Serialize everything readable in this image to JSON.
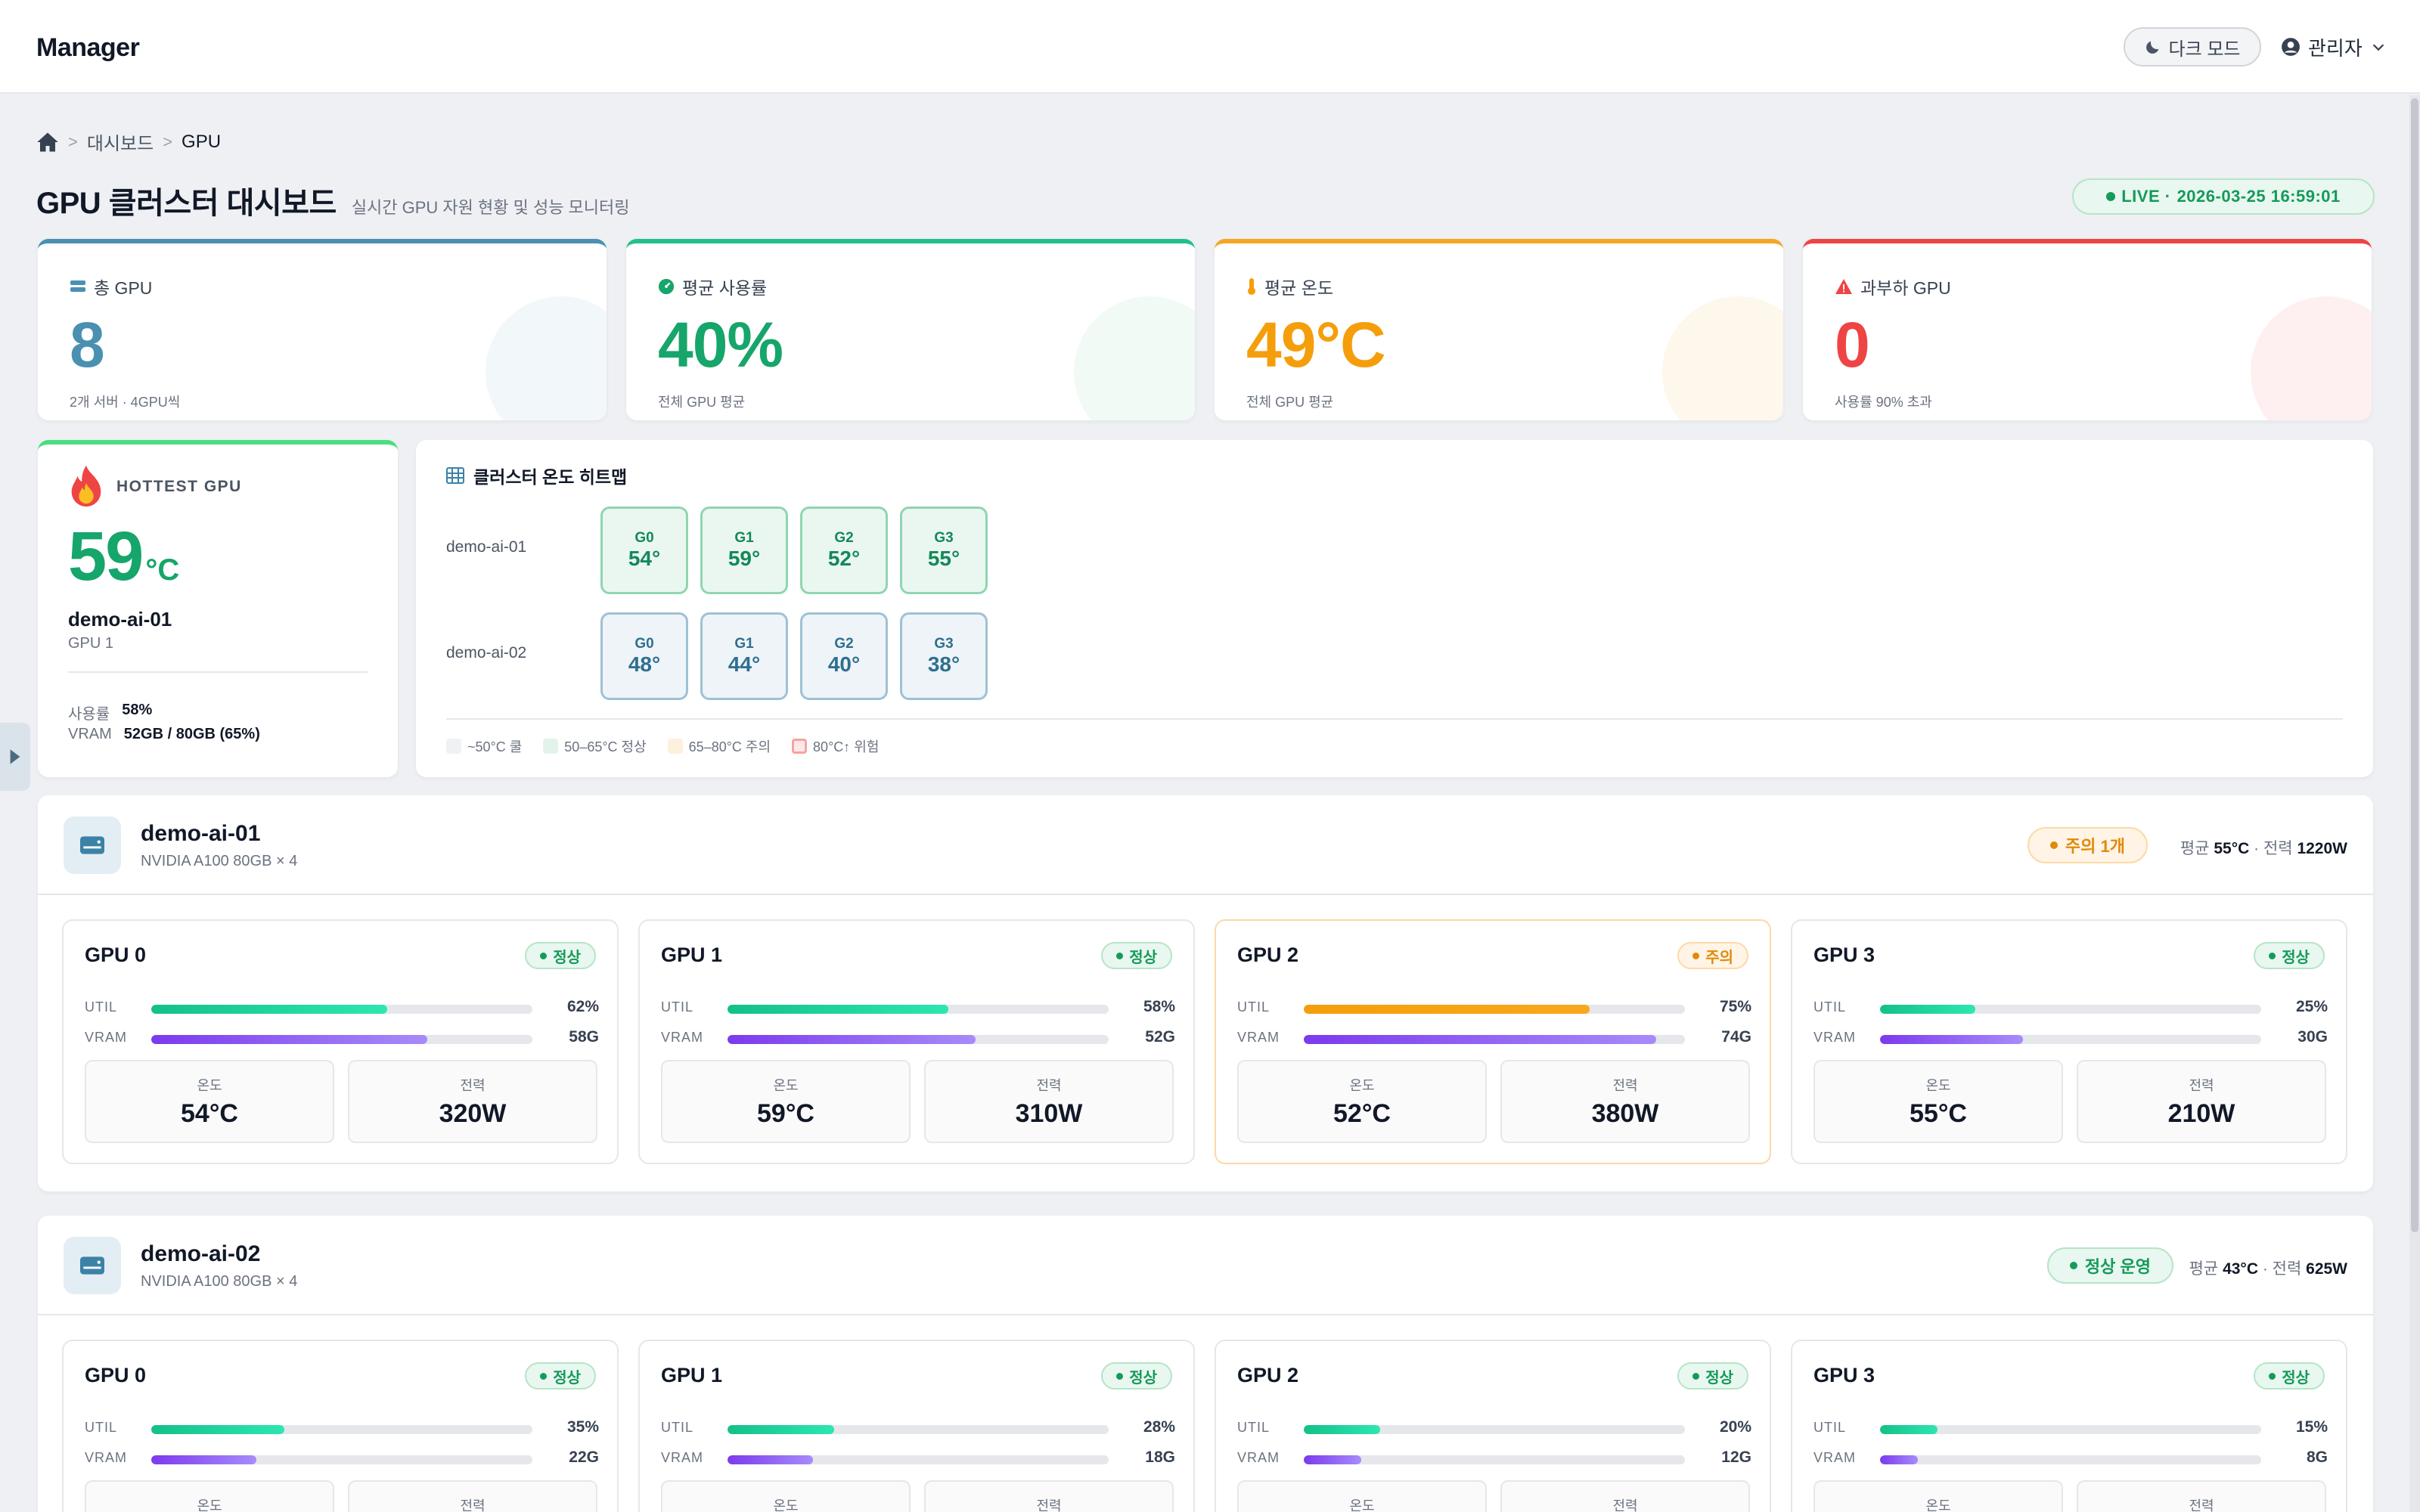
{
  "app": {
    "brand": "Manager",
    "dark_mode_label": "다크 모드",
    "user_label": "관리자"
  },
  "breadcrumb": {
    "level1": "대시보드",
    "level2": "GPU"
  },
  "page": {
    "title": "GPU 클러스터 대시보드",
    "subtitle": "실시간 GPU 자원 현황 및 성능 모니터링",
    "live_label": "LIVE ·",
    "live_time": "2026-03-25 16:59:01"
  },
  "colors": {
    "accent_blue": "#4a90b0",
    "accent_green": "#16a56a",
    "accent_orange": "#f59e0b",
    "accent_red": "#ef4444",
    "vram_purple": "#7c3aed"
  },
  "kpis": [
    {
      "label": "총 GPU",
      "value": "8",
      "note": "2개 서버 · 4GPU씩",
      "icon": "server-icon"
    },
    {
      "label": "평균 사용률",
      "value": "40%",
      "note": "전체 GPU 평균",
      "icon": "gauge-icon"
    },
    {
      "label": "평균 온도",
      "value": "49°C",
      "note": "전체 GPU 평균",
      "icon": "thermometer-icon"
    },
    {
      "label": "과부하 GPU",
      "value": "0",
      "note": "사용률 90% 초과",
      "icon": "warning-icon"
    }
  ],
  "hottest": {
    "label": "HOTTEST GPU",
    "temp": "59",
    "unit": "°C",
    "host": "demo-ai-01",
    "gpu": "GPU 1",
    "util_label": "사용률",
    "util_value": "58%",
    "vram_label": "VRAM",
    "vram_value": "52GB / 80GB (65%)"
  },
  "heatmap": {
    "title": "클러스터 온도 히트맵",
    "rows": [
      {
        "host": "demo-ai-01",
        "cells": [
          {
            "g": "G0",
            "t": "54°"
          },
          {
            "g": "G1",
            "t": "59°"
          },
          {
            "g": "G2",
            "t": "52°"
          },
          {
            "g": "G3",
            "t": "55°"
          }
        ]
      },
      {
        "host": "demo-ai-02",
        "cells": [
          {
            "g": "G0",
            "t": "48°"
          },
          {
            "g": "G1",
            "t": "44°"
          },
          {
            "g": "G2",
            "t": "40°"
          },
          {
            "g": "G3",
            "t": "38°"
          }
        ]
      }
    ],
    "legend": [
      "~50°C 쿨",
      "50–65°C 정상",
      "65–80°C 주의",
      "80°C↑ 위험"
    ]
  },
  "labels": {
    "util": "UTIL",
    "vram": "VRAM",
    "temp": "온도",
    "power": "전력",
    "avg": "평균",
    "power_sep": "· 전력"
  },
  "servers": [
    {
      "name": "demo-ai-01",
      "model": "NVIDIA A100 80GB × 4",
      "status": "주의 1개",
      "avg_temp": "55°C",
      "total_power": "1220W",
      "gpus": [
        {
          "name": "GPU 0",
          "badge": "정상",
          "util": 62,
          "util_label": "62%",
          "vram": 72.5,
          "vram_label": "58G",
          "temp": "54°C",
          "power": "320W"
        },
        {
          "name": "GPU 1",
          "badge": "정상",
          "util": 58,
          "util_label": "58%",
          "vram": 65,
          "vram_label": "52G",
          "temp": "59°C",
          "power": "310W"
        },
        {
          "name": "GPU 2",
          "badge": "주의",
          "util": 75,
          "util_label": "75%",
          "vram": 92.5,
          "vram_label": "74G",
          "temp": "52°C",
          "power": "380W"
        },
        {
          "name": "GPU 3",
          "badge": "정상",
          "util": 25,
          "util_label": "25%",
          "vram": 37.5,
          "vram_label": "30G",
          "temp": "55°C",
          "power": "210W"
        }
      ]
    },
    {
      "name": "demo-ai-02",
      "model": "NVIDIA A100 80GB × 4",
      "status": "정상 운영",
      "avg_temp": "43°C",
      "total_power": "625W",
      "gpus": [
        {
          "name": "GPU 0",
          "badge": "정상",
          "util": 35,
          "util_label": "35%",
          "vram": 27.5,
          "vram_label": "22G"
        },
        {
          "name": "GPU 1",
          "badge": "정상",
          "util": 28,
          "util_label": "28%",
          "vram": 22.5,
          "vram_label": "18G"
        },
        {
          "name": "GPU 2",
          "badge": "정상",
          "util": 20,
          "util_label": "20%",
          "vram": 15,
          "vram_label": "12G"
        },
        {
          "name": "GPU 3",
          "badge": "정상",
          "util": 15,
          "util_label": "15%",
          "vram": 10,
          "vram_label": "8G"
        }
      ]
    }
  ]
}
